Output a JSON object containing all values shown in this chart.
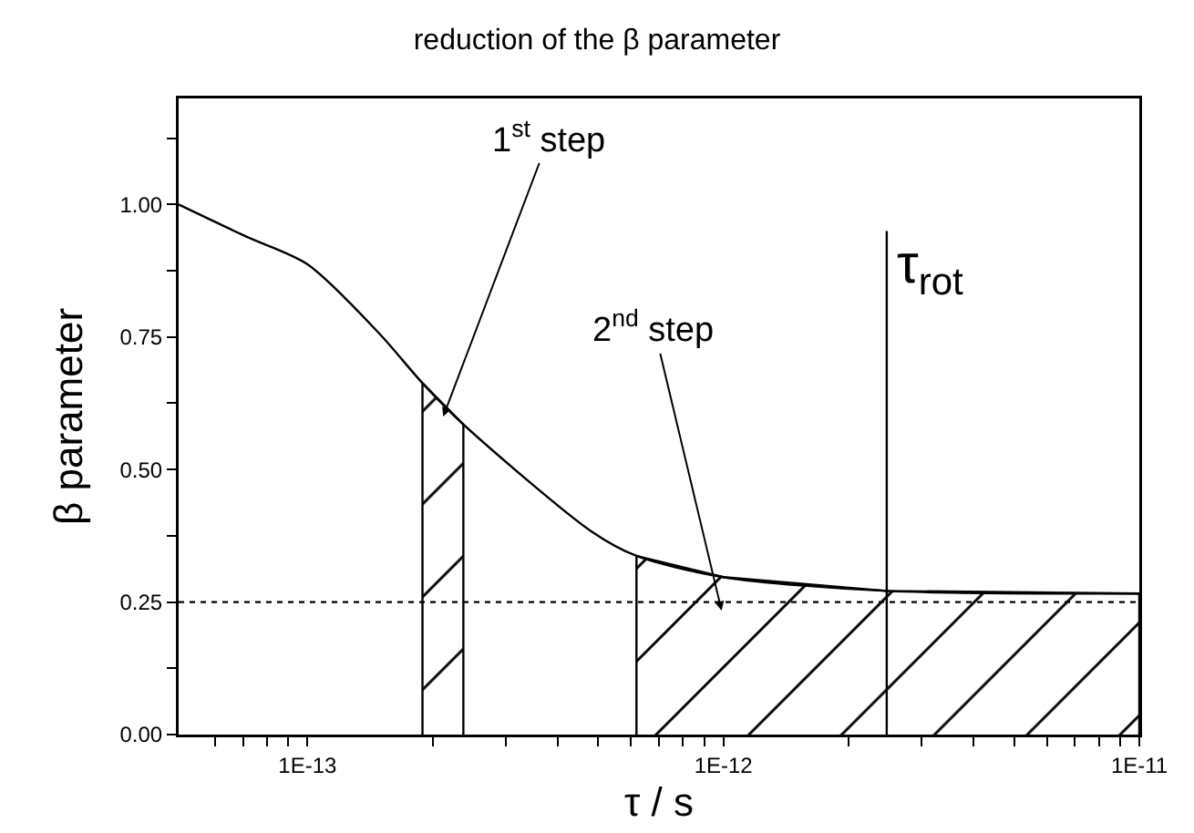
{
  "chart_data": {
    "type": "line",
    "title": "reduction of the β parameter",
    "xlabel": "τ / s",
    "ylabel": "β parameter",
    "log": "x",
    "grid": false,
    "legend": false,
    "marker": "none",
    "line_style": "solid",
    "xlim": [
      4.9e-14,
      1e-11
    ],
    "xticks": [
      {
        "value": 6e-14,
        "label": null
      },
      {
        "value": 7e-14,
        "label": null
      },
      {
        "value": 8e-14,
        "label": null
      },
      {
        "value": 9e-14,
        "label": null
      },
      {
        "value": 1e-13,
        "label": "1E-13"
      },
      {
        "value": 2e-13,
        "label": null
      },
      {
        "value": 3e-13,
        "label": null
      },
      {
        "value": 4e-13,
        "label": null
      },
      {
        "value": 5e-13,
        "label": null
      },
      {
        "value": 6e-13,
        "label": null
      },
      {
        "value": 7e-13,
        "label": null
      },
      {
        "value": 8e-13,
        "label": null
      },
      {
        "value": 9e-13,
        "label": null
      },
      {
        "value": 1e-12,
        "label": "1E-12"
      },
      {
        "value": 2e-12,
        "label": null
      },
      {
        "value": 3e-12,
        "label": null
      },
      {
        "value": 4e-12,
        "label": null
      },
      {
        "value": 5e-12,
        "label": null
      },
      {
        "value": 6e-12,
        "label": null
      },
      {
        "value": 7e-12,
        "label": null
      },
      {
        "value": 8e-12,
        "label": null
      },
      {
        "value": 9e-12,
        "label": null
      },
      {
        "value": 1e-11,
        "label": "1E-11"
      }
    ],
    "ylim": [
      0,
      1.2
    ],
    "yticks": [
      {
        "value": 0,
        "label": "0.00"
      },
      {
        "value": 0.125,
        "label": null
      },
      {
        "value": 0.25,
        "label": "0.25"
      },
      {
        "value": 0.375,
        "label": null
      },
      {
        "value": 0.5,
        "label": "0.50"
      },
      {
        "value": 0.625,
        "label": null
      },
      {
        "value": 0.75,
        "label": "0.75"
      },
      {
        "value": 0.875,
        "label": null
      },
      {
        "value": 1,
        "label": "1.00"
      },
      {
        "value": 1.125,
        "label": null
      }
    ],
    "series": [
      {
        "type": "area",
        "color": "#000000",
        "x": [
          1.89e-13,
          1.89e-13,
          2.37e-13,
          2.37e-13
        ],
        "values": [
          0,
          0.663,
          0.585,
          0
        ]
      },
      {
        "type": "area",
        "color": "#000000",
        "x": [
          6.18e-13,
          6.18e-13,
          1e-12,
          2.47e-12,
          1e-11,
          1e-11
        ],
        "values": [
          0,
          0.337,
          0.297,
          0.271,
          0.266,
          0
        ]
      },
      {
        "color": "#000000",
        "x": [
          4.9e-14,
          7.19e-14,
          1e-13,
          1.49e-13,
          1.89e-13,
          2.37e-13,
          4.82e-13,
          6.18e-13,
          1e-12,
          2.47e-12,
          1e-11
        ],
        "values": [
          1.0,
          0.938,
          0.887,
          0.756,
          0.663,
          0.585,
          0.383,
          0.337,
          0.297,
          0.271,
          0.266
        ]
      },
      {
        "type": "line",
        "name": "τ$_{rot}$",
        "color": "#000000",
        "x": [
          2.47e-12,
          2.47e-12
        ],
        "values": [
          0,
          0.95
        ]
      }
    ],
    "ref_lines": [
      {
        "axis": "y",
        "value": 0.25,
        "line_style": "dotted",
        "color": "#000000"
      }
    ],
    "annotations": [
      {
        "text": "1$^{st}$ step",
        "x": 2.12e-13,
        "y": 0.6
      },
      {
        "text": "2$^{nd}$ step",
        "x": 9.9e-13,
        "y": 0.234
      }
    ]
  }
}
